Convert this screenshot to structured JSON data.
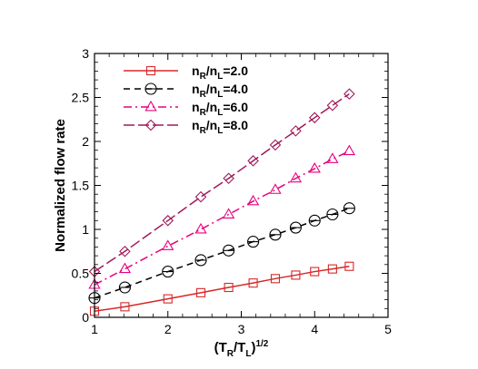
{
  "chart_data": {
    "type": "line",
    "xlabel": "(T_R/T_L)^{1/2}",
    "ylabel": "Normalized flow rate",
    "xlim": [
      1,
      5
    ],
    "ylim": [
      0,
      3
    ],
    "xticks": [
      "1",
      "2",
      "3",
      "4",
      "5"
    ],
    "yticks": [
      "0",
      "0.5",
      "1",
      "1.5",
      "2",
      "2.5",
      "3"
    ],
    "grid": false,
    "legend_position": "top-left",
    "series": [
      {
        "name": "n_R/n_L=2.0",
        "color": "#d62828",
        "dash": "solid",
        "marker": "square",
        "x": [
          1.0,
          1.414,
          2.0,
          2.449,
          2.828,
          3.162,
          3.464,
          3.742,
          4.0,
          4.243,
          4.472
        ],
        "y": [
          0.07,
          0.12,
          0.21,
          0.28,
          0.34,
          0.39,
          0.44,
          0.48,
          0.52,
          0.55,
          0.58
        ]
      },
      {
        "name": "n_R/n_L=4.0",
        "color": "#000000",
        "dash": "dashed",
        "marker": "circle",
        "x": [
          1.0,
          1.414,
          2.0,
          2.449,
          2.828,
          3.162,
          3.464,
          3.742,
          4.0,
          4.243,
          4.472
        ],
        "y": [
          0.22,
          0.34,
          0.52,
          0.65,
          0.76,
          0.86,
          0.94,
          1.02,
          1.1,
          1.17,
          1.24
        ]
      },
      {
        "name": "n_R/n_L=6.0",
        "color": "#e6007e",
        "dash": "dashdot",
        "marker": "triangle",
        "x": [
          1.0,
          1.414,
          2.0,
          2.449,
          2.828,
          3.162,
          3.464,
          3.742,
          4.0,
          4.243,
          4.472
        ],
        "y": [
          0.37,
          0.55,
          0.81,
          1.0,
          1.17,
          1.32,
          1.45,
          1.58,
          1.69,
          1.8,
          1.89
        ]
      },
      {
        "name": "n_R/n_L=8.0",
        "color": "#a0185a",
        "dash": "longdash",
        "marker": "diamond",
        "x": [
          1.0,
          1.414,
          2.0,
          2.449,
          2.828,
          3.162,
          3.464,
          3.742,
          4.0,
          4.243,
          4.472
        ],
        "y": [
          0.52,
          0.75,
          1.1,
          1.37,
          1.58,
          1.78,
          1.96,
          2.12,
          2.27,
          2.41,
          2.54
        ]
      }
    ]
  }
}
